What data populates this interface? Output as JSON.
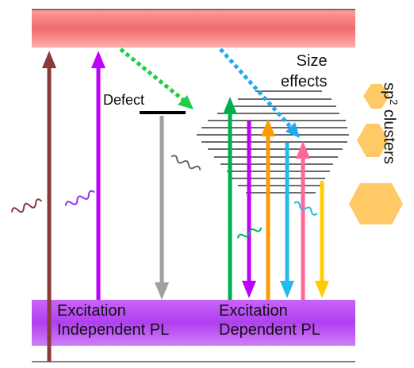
{
  "labels": {
    "defect": "Defect",
    "size_effects_line1": "Size",
    "size_effects_line2": "effects",
    "independent_line1": "Excitation",
    "independent_line2": "Independent PL",
    "dependent_line1": "Excitation",
    "dependent_line2": "Dependent PL",
    "sp2_prefix": "sp",
    "sp2_superscript": "2",
    "sp2_suffix": " clusters"
  },
  "colors": {
    "conduction_band": "#f07070",
    "valence_band": "#b040f0",
    "brown_arrow": "#8b3a3a",
    "magenta_arrow": "#c000ff",
    "green_dashed": "#22cc44",
    "blue_dashed": "#22aaee",
    "gray_arrow": "#a0a0a0",
    "green_arrow": "#00b050",
    "purple_arrow": "#c000ff",
    "orange_arrow": "#ff9900",
    "cyan_arrow": "#22bbee",
    "pink_arrow": "#ff6699",
    "yellow_arrow": "#ffcc00",
    "hexagon": "#ffc966"
  }
}
